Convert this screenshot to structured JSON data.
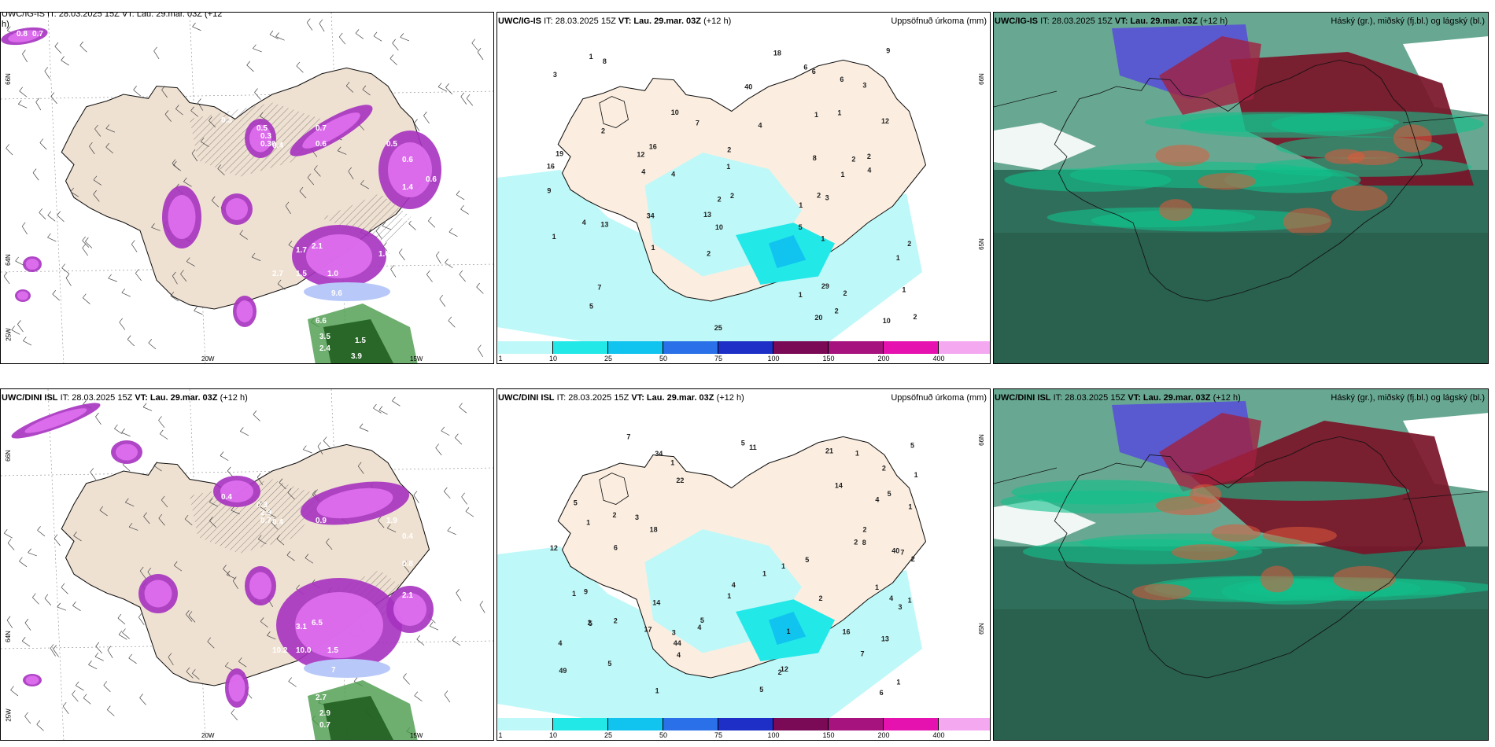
{
  "panels": {
    "tl": {
      "model": "UWC/IG-IS",
      "it": "IT: 28.03.2025 15Z",
      "vt": "VT: Lau. 29.mar. 03Z",
      "lead": "(+12 h)",
      "right": ""
    },
    "tm": {
      "model": "UWC/IG-IS",
      "it": "IT: 28.03.2025 15Z",
      "vt": "VT: Lau. 29.mar. 03Z",
      "lead": "(+12 h)",
      "right": "Uppsöfnuð úrkoma (mm)"
    },
    "tr": {
      "model": "UWC/IG-IS",
      "it": "IT: 28.03.2025 15Z",
      "vt": "VT: Lau. 29.mar. 03Z",
      "lead": "(+12 h)",
      "right": "Háský (gr.), miðský (fj.bl.) og lágský (bl.)"
    },
    "bl": {
      "model": "UWC/DINI ISL",
      "it": "IT: 28.03.2025 15Z",
      "vt": "VT: Lau. 29.mar. 03Z",
      "lead": "(+12 h)",
      "right": ""
    },
    "bm": {
      "model": "UWC/DINI ISL",
      "it": "IT: 28.03.2025 15Z",
      "vt": "VT: Lau. 29.mar. 03Z",
      "lead": "(+12 h)",
      "right": "Uppsöfnuð úrkoma (mm)"
    },
    "br": {
      "model": "UWC/DINI ISL",
      "it": "IT: 28.03.2025 15Z",
      "vt": "VT: Lau. 29.mar. 03Z",
      "lead": "(+12 h)",
      "right": "Háský (gr.), miðský (fj.bl.) og lágský (bl.)"
    }
  },
  "tl_first_line": "UWC/IG-IS IT: 28.03.2025 15Z VT: Lau. 29.mar. 03Z (+12",
  "tl_second_line": "h)",
  "legend": {
    "ticks": [
      "1",
      "10",
      "25",
      "50",
      "75",
      "100",
      "150",
      "200",
      "400"
    ],
    "colors": [
      "#bff8f8",
      "#22e8e8",
      "#10c4ef",
      "#2a70e8",
      "#1d2fc6",
      "#7a0a55",
      "#a6127e",
      "#e612b0",
      "#f4a8f0"
    ]
  },
  "coords": {
    "lat66": "66N",
    "lat65": "65N",
    "lat64": "64N",
    "lon20": "20W",
    "lon15": "15W",
    "lon25": "25W"
  },
  "precip_top": [
    "5",
    "2",
    "2",
    "1",
    "1",
    "1",
    "2",
    "2",
    "1",
    "2",
    "2",
    "1",
    "1",
    "1",
    "1",
    "10",
    "3",
    "4",
    "6",
    "7",
    "10",
    "9",
    "8",
    "6",
    "4",
    "7",
    "2",
    "1",
    "2",
    "13",
    "12",
    "18",
    "19",
    "29",
    "4",
    "5",
    "4",
    "2",
    "3",
    "20",
    "13",
    "34",
    "40",
    "25",
    "16",
    "10",
    "9",
    "16",
    "2",
    "8",
    "2",
    "12",
    "1",
    "2",
    "3",
    "4",
    "6",
    "1",
    "1"
  ],
  "precip_bot": [
    "3",
    "5",
    "5",
    "4",
    "4",
    "7",
    "6",
    "14",
    "5",
    "7",
    "5",
    "4",
    "1",
    "1",
    "1",
    "1",
    "1",
    "1",
    "2",
    "2",
    "2",
    "1",
    "1",
    "2",
    "1",
    "1",
    "4",
    "5",
    "9",
    "5",
    "3",
    "2",
    "4",
    "5",
    "1",
    "2",
    "1",
    "17",
    "4",
    "5",
    "12",
    "6",
    "21",
    "11",
    "18",
    "34",
    "44",
    "49",
    "40",
    "22",
    "14",
    "12",
    "13",
    "7",
    "8",
    "3",
    "5",
    "16",
    "2",
    "1",
    "2",
    "2",
    "1"
  ],
  "wind_top": [
    "0.8",
    "0.7",
    "0.3",
    "0.5",
    "0.30",
    "0.4",
    "0.6",
    "0.5",
    "0.6",
    "1.4",
    "0.6",
    "0.5",
    "0.3",
    "2.1",
    "1.7",
    "1.5",
    "2.7",
    "1.0",
    "9.6",
    "0.7",
    "6.6",
    "3.5",
    "2.4",
    "1.5",
    "3.9",
    "0.5",
    "1.0",
    "0.7"
  ],
  "wind_bot": [
    "2.8",
    "0.9",
    "0.4",
    "0.3",
    "0.7",
    "0.4",
    "0.9",
    "1.9",
    "0.4",
    "0.8",
    "1.9",
    "2.1",
    "2.9",
    "6.5",
    "3.1",
    "10.0",
    "10.2",
    "1.5",
    "7",
    "3.2",
    "2.7",
    "2.9",
    "0.7"
  ]
}
